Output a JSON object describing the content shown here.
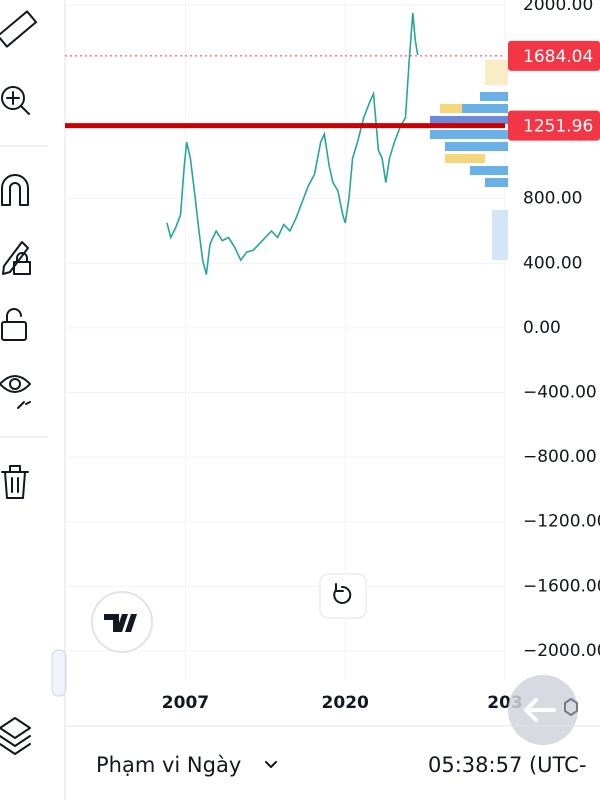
{
  "chart_data": {
    "type": "line",
    "x": [
      2005.5,
      2005.8,
      2006.2,
      2006.6,
      2006.9,
      2007.1,
      2007.4,
      2007.8,
      2008.1,
      2008.4,
      2008.7,
      2009.0,
      2009.5,
      2010,
      2010.5,
      2011,
      2011.5,
      2012,
      2012.5,
      2013,
      2013.5,
      2014,
      2014.5,
      2015,
      2015.5,
      2016,
      2016.5,
      2017,
      2017.5,
      2018,
      2018.3,
      2018.7,
      2019,
      2019.4,
      2019.8,
      2020,
      2020.3,
      2020.6,
      2021,
      2021.5,
      2022,
      2022.3,
      2022.7,
      2023,
      2023.3,
      2023.6,
      2024,
      2024.5,
      2024.9,
      2025.2,
      2025.5,
      2025.7,
      2025.9
    ],
    "values": [
      650,
      560,
      620,
      700,
      1000,
      1150,
      1050,
      800,
      600,
      420,
      330,
      520,
      600,
      540,
      560,
      500,
      420,
      470,
      480,
      520,
      560,
      600,
      560,
      640,
      600,
      680,
      780,
      880,
      950,
      1150,
      1200,
      1000,
      900,
      850,
      700,
      650,
      800,
      1050,
      1150,
      1300,
      1400,
      1450,
      1100,
      1050,
      900,
      1050,
      1150,
      1250,
      1300,
      1650,
      1950,
      1780,
      1690
    ],
    "color": "#26a69a",
    "xlim": [
      1997.2,
      2033
    ],
    "xticks": [
      2007,
      2020,
      {
        "value": 2033,
        "label": "203"
      }
    ],
    "ylim": [
      -2180,
      2030
    ],
    "yticks": [
      {
        "value": 2000,
        "label": "2000.00"
      },
      {
        "value": 800,
        "label": "800.00"
      },
      {
        "value": 400,
        "label": "400.00"
      },
      {
        "value": 0,
        "label": "0.00"
      },
      {
        "value": -400,
        "label": "−400.00"
      },
      {
        "value": -800,
        "label": "−800.00"
      },
      {
        "value": -1200,
        "label": "−1200.00"
      },
      {
        "value": -1600,
        "label": "−1600.00"
      },
      {
        "value": -2000,
        "label": "−2000.00"
      }
    ],
    "grid": true,
    "price_lines": [
      {
        "value": 1684.04,
        "color": "#f23645",
        "style": "dotted"
      },
      {
        "value": 1251.96,
        "color": "#cc0000",
        "style": "solid"
      }
    ]
  },
  "ui": {
    "range_selector": "Phạm vi Ngày",
    "clock": "05:38:57 (UTC-"
  }
}
